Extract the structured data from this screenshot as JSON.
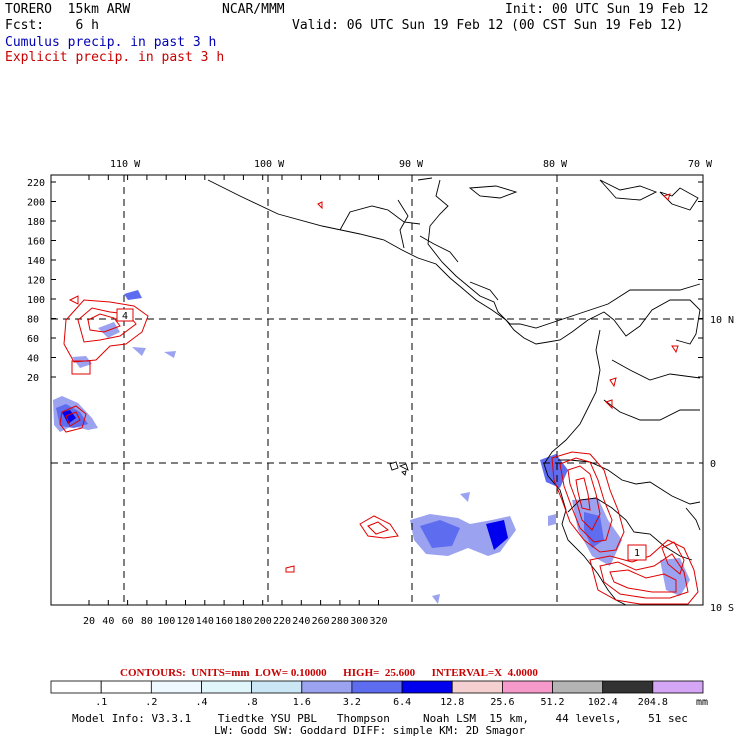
{
  "header": {
    "model": "TORERO  15km ARW",
    "org": "NCAR/MMM",
    "init": "Init: 00 UTC Sun 19 Feb 12",
    "fcst": "Fcst:    6 h",
    "valid": "Valid: 06 UTC Sun 19 Feb 12 (00 CST Sun 19 Feb 12)",
    "cumulus": "Cumulus precip. in past 3 h",
    "explicit": "Explicit precip. in past 3 h"
  },
  "map": {
    "lon_labels": [
      "110 W",
      "100 W",
      "90 W",
      "80 W",
      "70 W"
    ],
    "lat_labels": [
      "10 N",
      "0",
      "10 S"
    ],
    "y_ticks": [
      "220",
      "200",
      "180",
      "160",
      "140",
      "120",
      "100",
      "80",
      "60",
      "40",
      "20"
    ],
    "x_ticks": [
      "20",
      "40",
      "60",
      "80",
      "100",
      "120",
      "140",
      "160",
      "180",
      "200",
      "220",
      "240",
      "260",
      "280",
      "300",
      "320"
    ],
    "high_marks": [
      "4",
      "1",
      "1"
    ]
  },
  "legend": {
    "contours": "CONTOURS:  UNITS=mm  LOW= 0.10000      HIGH=  25.600      INTERVAL=X  4.0000",
    "values": [
      ".1",
      ".2",
      ".4",
      ".8",
      "1.6",
      "3.2",
      "6.4",
      "12.8",
      "25.6",
      "51.2",
      "102.4",
      "204.8"
    ],
    "unit": "mm",
    "colors": [
      "#ffffff",
      "#ffffff",
      "#eef8ff",
      "#e0f6fa",
      "#cbe6f5",
      "#9ba3f0",
      "#5e6cf0",
      "#0000ee",
      "#f5d0d0",
      "#f59acb",
      "#b4b4b4",
      "#323232",
      "#d6a6f6"
    ]
  },
  "footer": {
    "line1": "Model Info: V3.3.1    Tiedtke YSU PBL   Thompson     Noah LSM  15 km,    44 levels,    51 sec",
    "line2": "LW: Godd SW: Goddard DIFF: simple KM: 2D Smagor"
  }
}
